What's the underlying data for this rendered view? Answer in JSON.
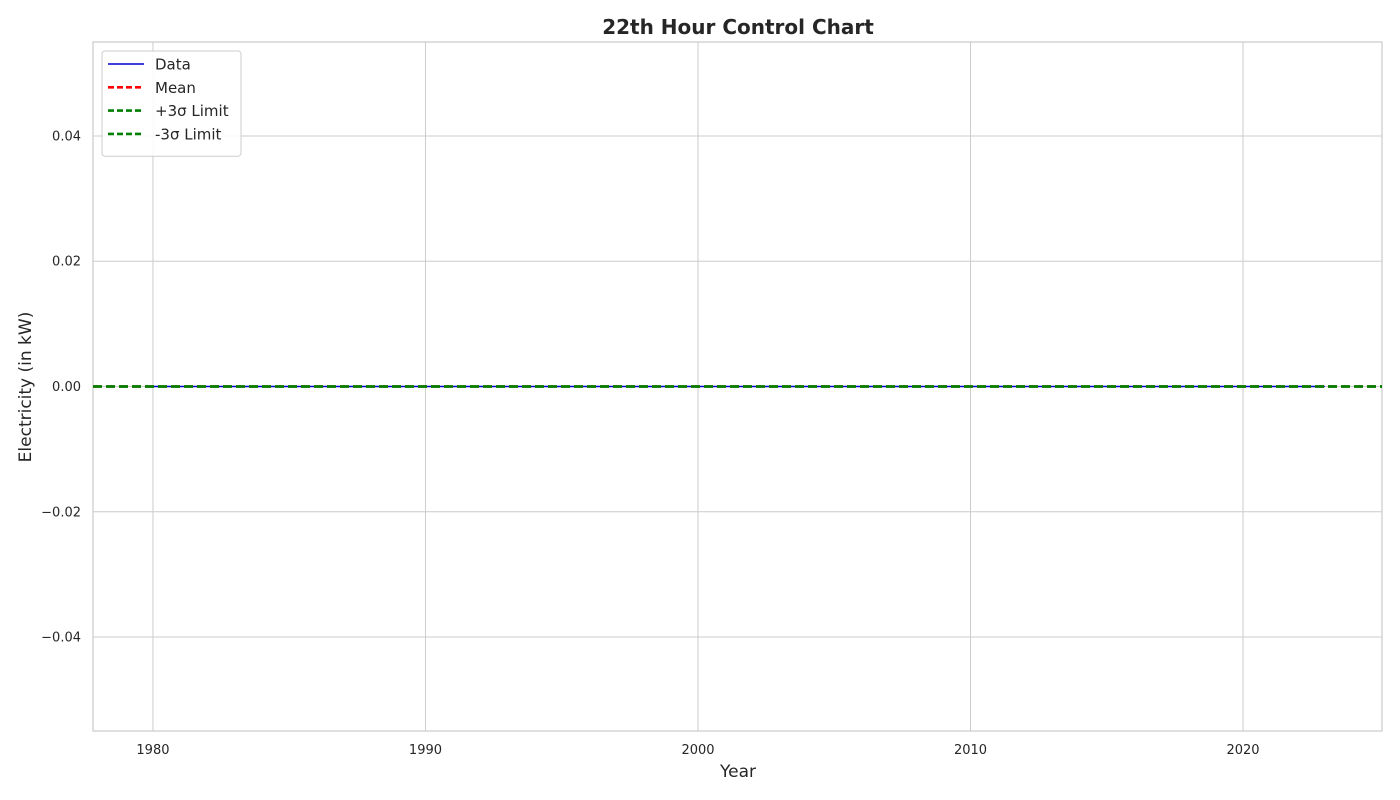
{
  "chart_data": {
    "type": "line",
    "title": "22th Hour Control Chart",
    "xlabel": "Year",
    "ylabel": "Electricity (in kW)",
    "xlim": [
      1977.8,
      2025.1
    ],
    "ylim": [
      -0.055,
      0.055
    ],
    "x_ticks": [
      1980,
      1990,
      2000,
      2010,
      2020
    ],
    "x_tick_labels": [
      "1980",
      "1990",
      "2000",
      "2010",
      "2020"
    ],
    "y_ticks": [
      0.04,
      0.02,
      0.0,
      -0.02,
      -0.04
    ],
    "y_tick_labels": [
      "0.04",
      "0.02",
      "0.00",
      "−0.02",
      "−0.04"
    ],
    "grid": true,
    "legend_position": "top-left",
    "series": [
      {
        "name": "Data",
        "color": "#0000cc",
        "style": "solid",
        "x": [
          1980,
          1981,
          1982,
          1983,
          1984,
          1985,
          1986,
          1987,
          1988,
          1989,
          1990,
          1991,
          1992,
          1993,
          1994,
          1995,
          1996,
          1997,
          1998,
          1999,
          2000,
          2001,
          2002,
          2003,
          2004,
          2005,
          2006,
          2007,
          2008,
          2009,
          2010,
          2011,
          2012,
          2013,
          2014,
          2015,
          2016,
          2017,
          2018,
          2019,
          2020,
          2021,
          2022,
          2023
        ],
        "values": [
          0,
          0,
          0,
          0,
          0,
          0,
          0,
          0,
          0,
          0,
          0,
          0,
          0,
          0,
          0,
          0,
          0,
          0,
          0,
          0,
          0,
          0,
          0,
          0,
          0,
          0,
          0,
          0,
          0,
          0,
          0,
          0,
          0,
          0,
          0,
          0,
          0,
          0,
          0,
          0,
          0,
          0,
          0,
          0
        ]
      },
      {
        "name": "Mean",
        "color": "#ff0000",
        "style": "dashed",
        "value": 0.0
      },
      {
        "name": "+3σ Limit",
        "color": "#008000",
        "style": "dashed",
        "value": 0.0
      },
      {
        "name": "-3σ Limit",
        "color": "#008000",
        "style": "dashed",
        "value": 0.0
      }
    ]
  }
}
